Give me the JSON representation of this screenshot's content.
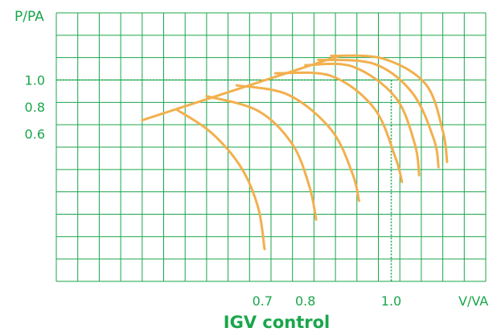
{
  "colors": {
    "grid": "#1aa64b",
    "curve": "#f2b04e",
    "text": "#1aa64b",
    "background": "#ffffff"
  },
  "chart_data": {
    "type": "line",
    "title": "IGV control",
    "xlabel": "V/VA",
    "ylabel": "P/PA",
    "xlim": [
      0.22,
      1.22
    ],
    "ylim": [
      -0.5,
      1.5
    ],
    "x_ticks": [
      {
        "value": 0.7,
        "label": "0.7"
      },
      {
        "value": 0.8,
        "label": "0.8"
      },
      {
        "value": 1.0,
        "label": "1.0"
      }
    ],
    "y_ticks": [
      {
        "value": 0.6,
        "label": "0.6"
      },
      {
        "value": 0.8,
        "label": "0.8"
      },
      {
        "value": 1.0,
        "label": "1.0"
      }
    ],
    "grid": true,
    "reference_lines": {
      "x": 1.0,
      "y": 1.0,
      "style": "dotted"
    },
    "surge_line": [
      [
        0.42,
        0.7
      ],
      [
        0.88,
        1.18
      ]
    ],
    "series": [
      {
        "points": [
          [
            0.5,
            0.78
          ],
          [
            0.58,
            0.61
          ],
          [
            0.65,
            0.35
          ],
          [
            0.69,
            0.05
          ],
          [
            0.705,
            -0.26
          ]
        ]
      },
      {
        "points": [
          [
            0.57,
            0.88
          ],
          [
            0.69,
            0.77
          ],
          [
            0.77,
            0.52
          ],
          [
            0.81,
            0.2
          ],
          [
            0.825,
            -0.04
          ]
        ]
      },
      {
        "points": [
          [
            0.64,
            0.96
          ],
          [
            0.76,
            0.89
          ],
          [
            0.86,
            0.63
          ],
          [
            0.91,
            0.3
          ],
          [
            0.925,
            0.1
          ]
        ]
      },
      {
        "points": [
          [
            0.73,
            1.05
          ],
          [
            0.86,
            1.03
          ],
          [
            0.96,
            0.79
          ],
          [
            1.01,
            0.42
          ],
          [
            1.025,
            0.24
          ]
        ]
      },
      {
        "points": [
          [
            0.8,
            1.11
          ],
          [
            0.91,
            1.1
          ],
          [
            1.01,
            0.87
          ],
          [
            1.055,
            0.52
          ],
          [
            1.065,
            0.29
          ]
        ]
      },
      {
        "points": [
          [
            0.83,
            1.15
          ],
          [
            0.96,
            1.12
          ],
          [
            1.05,
            0.9
          ],
          [
            1.1,
            0.55
          ],
          [
            1.11,
            0.35
          ]
        ]
      },
      {
        "points": [
          [
            0.86,
            1.18
          ],
          [
            0.98,
            1.16
          ],
          [
            1.08,
            0.97
          ],
          [
            1.12,
            0.62
          ],
          [
            1.13,
            0.39
          ]
        ]
      }
    ]
  }
}
